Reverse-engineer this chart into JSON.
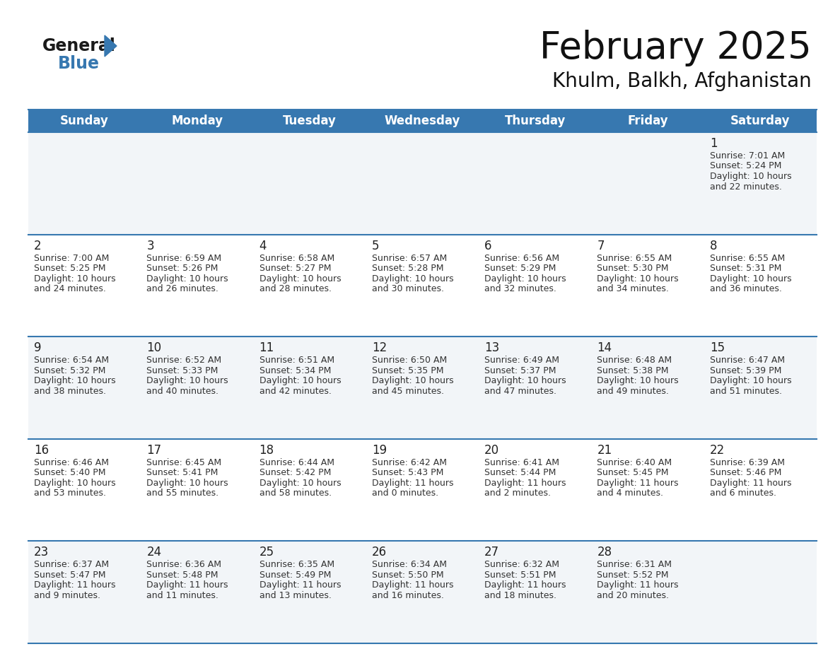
{
  "title": "February 2025",
  "subtitle": "Khulm, Balkh, Afghanistan",
  "header_bg": "#3778b0",
  "header_text": "#ffffff",
  "cell_bg_row0": "#f2f5f8",
  "cell_bg_row1": "#ffffff",
  "cell_bg_row2": "#f2f5f8",
  "cell_bg_row3": "#ffffff",
  "cell_bg_row4": "#f2f5f8",
  "separator_color": "#3778b0",
  "text_color": "#333333",
  "day_number_color": "#222222",
  "day_names": [
    "Sunday",
    "Monday",
    "Tuesday",
    "Wednesday",
    "Thursday",
    "Friday",
    "Saturday"
  ],
  "days": [
    {
      "day": 1,
      "col": 6,
      "row": 0,
      "sunrise": "7:01 AM",
      "sunset": "5:24 PM",
      "daylight_h": "10 hours",
      "daylight_m": "and 22 minutes."
    },
    {
      "day": 2,
      "col": 0,
      "row": 1,
      "sunrise": "7:00 AM",
      "sunset": "5:25 PM",
      "daylight_h": "10 hours",
      "daylight_m": "and 24 minutes."
    },
    {
      "day": 3,
      "col": 1,
      "row": 1,
      "sunrise": "6:59 AM",
      "sunset": "5:26 PM",
      "daylight_h": "10 hours",
      "daylight_m": "and 26 minutes."
    },
    {
      "day": 4,
      "col": 2,
      "row": 1,
      "sunrise": "6:58 AM",
      "sunset": "5:27 PM",
      "daylight_h": "10 hours",
      "daylight_m": "and 28 minutes."
    },
    {
      "day": 5,
      "col": 3,
      "row": 1,
      "sunrise": "6:57 AM",
      "sunset": "5:28 PM",
      "daylight_h": "10 hours",
      "daylight_m": "and 30 minutes."
    },
    {
      "day": 6,
      "col": 4,
      "row": 1,
      "sunrise": "6:56 AM",
      "sunset": "5:29 PM",
      "daylight_h": "10 hours",
      "daylight_m": "and 32 minutes."
    },
    {
      "day": 7,
      "col": 5,
      "row": 1,
      "sunrise": "6:55 AM",
      "sunset": "5:30 PM",
      "daylight_h": "10 hours",
      "daylight_m": "and 34 minutes."
    },
    {
      "day": 8,
      "col": 6,
      "row": 1,
      "sunrise": "6:55 AM",
      "sunset": "5:31 PM",
      "daylight_h": "10 hours",
      "daylight_m": "and 36 minutes."
    },
    {
      "day": 9,
      "col": 0,
      "row": 2,
      "sunrise": "6:54 AM",
      "sunset": "5:32 PM",
      "daylight_h": "10 hours",
      "daylight_m": "and 38 minutes."
    },
    {
      "day": 10,
      "col": 1,
      "row": 2,
      "sunrise": "6:52 AM",
      "sunset": "5:33 PM",
      "daylight_h": "10 hours",
      "daylight_m": "and 40 minutes."
    },
    {
      "day": 11,
      "col": 2,
      "row": 2,
      "sunrise": "6:51 AM",
      "sunset": "5:34 PM",
      "daylight_h": "10 hours",
      "daylight_m": "and 42 minutes."
    },
    {
      "day": 12,
      "col": 3,
      "row": 2,
      "sunrise": "6:50 AM",
      "sunset": "5:35 PM",
      "daylight_h": "10 hours",
      "daylight_m": "and 45 minutes."
    },
    {
      "day": 13,
      "col": 4,
      "row": 2,
      "sunrise": "6:49 AM",
      "sunset": "5:37 PM",
      "daylight_h": "10 hours",
      "daylight_m": "and 47 minutes."
    },
    {
      "day": 14,
      "col": 5,
      "row": 2,
      "sunrise": "6:48 AM",
      "sunset": "5:38 PM",
      "daylight_h": "10 hours",
      "daylight_m": "and 49 minutes."
    },
    {
      "day": 15,
      "col": 6,
      "row": 2,
      "sunrise": "6:47 AM",
      "sunset": "5:39 PM",
      "daylight_h": "10 hours",
      "daylight_m": "and 51 minutes."
    },
    {
      "day": 16,
      "col": 0,
      "row": 3,
      "sunrise": "6:46 AM",
      "sunset": "5:40 PM",
      "daylight_h": "10 hours",
      "daylight_m": "and 53 minutes."
    },
    {
      "day": 17,
      "col": 1,
      "row": 3,
      "sunrise": "6:45 AM",
      "sunset": "5:41 PM",
      "daylight_h": "10 hours",
      "daylight_m": "and 55 minutes."
    },
    {
      "day": 18,
      "col": 2,
      "row": 3,
      "sunrise": "6:44 AM",
      "sunset": "5:42 PM",
      "daylight_h": "10 hours",
      "daylight_m": "and 58 minutes."
    },
    {
      "day": 19,
      "col": 3,
      "row": 3,
      "sunrise": "6:42 AM",
      "sunset": "5:43 PM",
      "daylight_h": "11 hours",
      "daylight_m": "and 0 minutes."
    },
    {
      "day": 20,
      "col": 4,
      "row": 3,
      "sunrise": "6:41 AM",
      "sunset": "5:44 PM",
      "daylight_h": "11 hours",
      "daylight_m": "and 2 minutes."
    },
    {
      "day": 21,
      "col": 5,
      "row": 3,
      "sunrise": "6:40 AM",
      "sunset": "5:45 PM",
      "daylight_h": "11 hours",
      "daylight_m": "and 4 minutes."
    },
    {
      "day": 22,
      "col": 6,
      "row": 3,
      "sunrise": "6:39 AM",
      "sunset": "5:46 PM",
      "daylight_h": "11 hours",
      "daylight_m": "and 6 minutes."
    },
    {
      "day": 23,
      "col": 0,
      "row": 4,
      "sunrise": "6:37 AM",
      "sunset": "5:47 PM",
      "daylight_h": "11 hours",
      "daylight_m": "and 9 minutes."
    },
    {
      "day": 24,
      "col": 1,
      "row": 4,
      "sunrise": "6:36 AM",
      "sunset": "5:48 PM",
      "daylight_h": "11 hours",
      "daylight_m": "and 11 minutes."
    },
    {
      "day": 25,
      "col": 2,
      "row": 4,
      "sunrise": "6:35 AM",
      "sunset": "5:49 PM",
      "daylight_h": "11 hours",
      "daylight_m": "and 13 minutes."
    },
    {
      "day": 26,
      "col": 3,
      "row": 4,
      "sunrise": "6:34 AM",
      "sunset": "5:50 PM",
      "daylight_h": "11 hours",
      "daylight_m": "and 16 minutes."
    },
    {
      "day": 27,
      "col": 4,
      "row": 4,
      "sunrise": "6:32 AM",
      "sunset": "5:51 PM",
      "daylight_h": "11 hours",
      "daylight_m": "and 18 minutes."
    },
    {
      "day": 28,
      "col": 5,
      "row": 4,
      "sunrise": "6:31 AM",
      "sunset": "5:52 PM",
      "daylight_h": "11 hours",
      "daylight_m": "and 20 minutes."
    }
  ],
  "logo_general_color": "#1a1a1a",
  "logo_blue_color": "#3778b0",
  "title_fontsize": 38,
  "subtitle_fontsize": 20,
  "header_fontsize": 12,
  "day_num_fontsize": 12,
  "cell_fontsize": 9
}
